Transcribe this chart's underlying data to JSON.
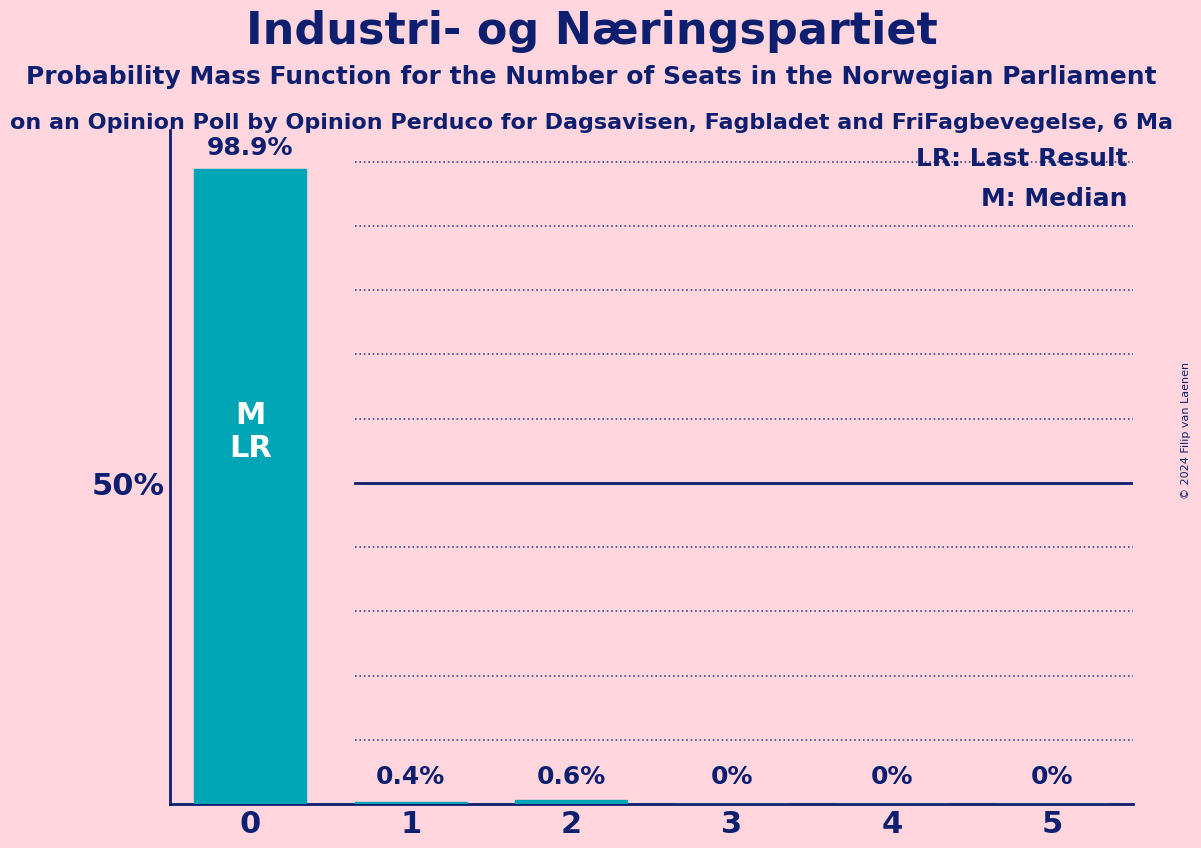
{
  "title": "Industri- og Næringspartiet",
  "subtitle": "Probability Mass Function for the Number of Seats in the Norwegian Parliament",
  "subtitle2": "on an Opinion Poll by Opinion Perduco for Dagsavisen, Fagbladet and FriFagbevegelse, 6 Ma",
  "copyright": "© 2024 Filip van Laenen",
  "categories": [
    0,
    1,
    2,
    3,
    4,
    5
  ],
  "values": [
    98.9,
    0.4,
    0.6,
    0.0,
    0.0,
    0.0
  ],
  "bar_color": "#00a5b5",
  "background_color": "#ffd6de",
  "title_color": "#0d1f6e",
  "grid_color": "#0d1f6e",
  "legend_lr_label": "LR: Last Result",
  "legend_m_label": "M: Median",
  "ylabel_50": "50%",
  "ylim": [
    0,
    105
  ],
  "bar_labels": [
    "98.9%",
    "0.4%",
    "0.6%",
    "0%",
    "0%",
    "0%"
  ],
  "title_fontsize": 32,
  "subtitle_fontsize": 18,
  "subtitle2_fontsize": 16,
  "bar_label_fontsize": 18,
  "tick_fontsize": 22,
  "ylabel_fontsize": 22,
  "legend_fontsize": 18,
  "fifty_pct_line": 50,
  "dotted_lines": [
    10,
    20,
    30,
    40,
    60,
    70,
    80,
    90,
    100
  ]
}
